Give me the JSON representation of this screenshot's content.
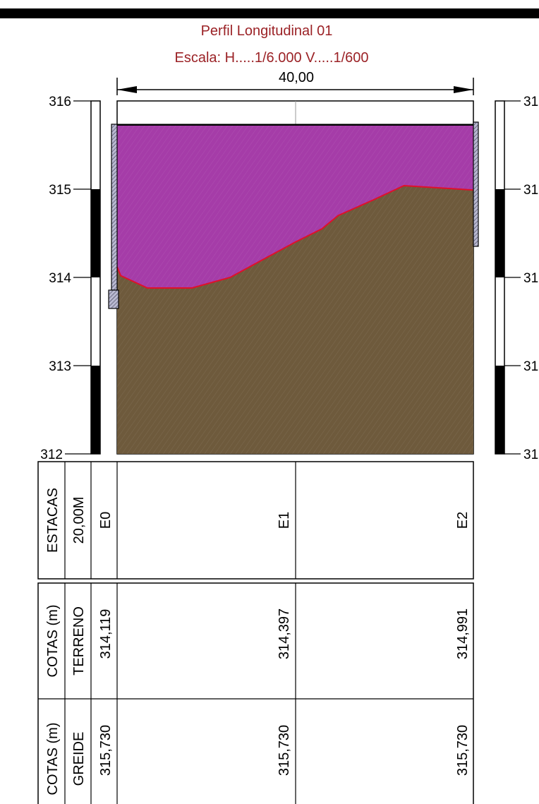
{
  "header": {
    "title": "Perfil Longitudinal 01",
    "scale": "Escala:  H.....1/6.000   V.....1/600",
    "dimension": "40,00"
  },
  "axes": {
    "left_ticks": [
      "316",
      "315",
      "314",
      "313",
      "312"
    ],
    "right_ticks": [
      "31",
      "31",
      "31",
      "31",
      "31"
    ]
  },
  "colors": {
    "fill_cut": "#a53ca8",
    "soil": "#6e5a3c",
    "terrain_line": "#e0102a",
    "title": "#9b2226"
  },
  "profile": {
    "elevation_range": [
      312,
      316
    ],
    "station_range": [
      0,
      40
    ],
    "grade_elevation": 315.73,
    "terrain": [
      [
        0,
        314.12
      ],
      [
        0.4,
        314.02
      ],
      [
        3.4,
        313.88
      ],
      [
        8.4,
        313.88
      ],
      [
        12.7,
        314.0
      ],
      [
        16.7,
        314.22
      ],
      [
        20,
        314.4
      ],
      [
        23,
        314.55
      ],
      [
        24.8,
        314.7
      ],
      [
        28.8,
        314.88
      ],
      [
        32.2,
        315.04
      ],
      [
        40,
        314.99
      ]
    ]
  },
  "table": {
    "estacas": {
      "header": "ESTACAS",
      "sub": "20,00M",
      "values": [
        "E0",
        "E1",
        "E2"
      ]
    },
    "terreno": {
      "header": "COTAS (m)",
      "sub": "TERRENO",
      "values": [
        "314,119",
        "314,397",
        "314,991"
      ]
    },
    "greide": {
      "header": "COTAS (m)",
      "sub": "GREIDE",
      "values": [
        "315,730",
        "315,730",
        "315,730"
      ]
    }
  }
}
